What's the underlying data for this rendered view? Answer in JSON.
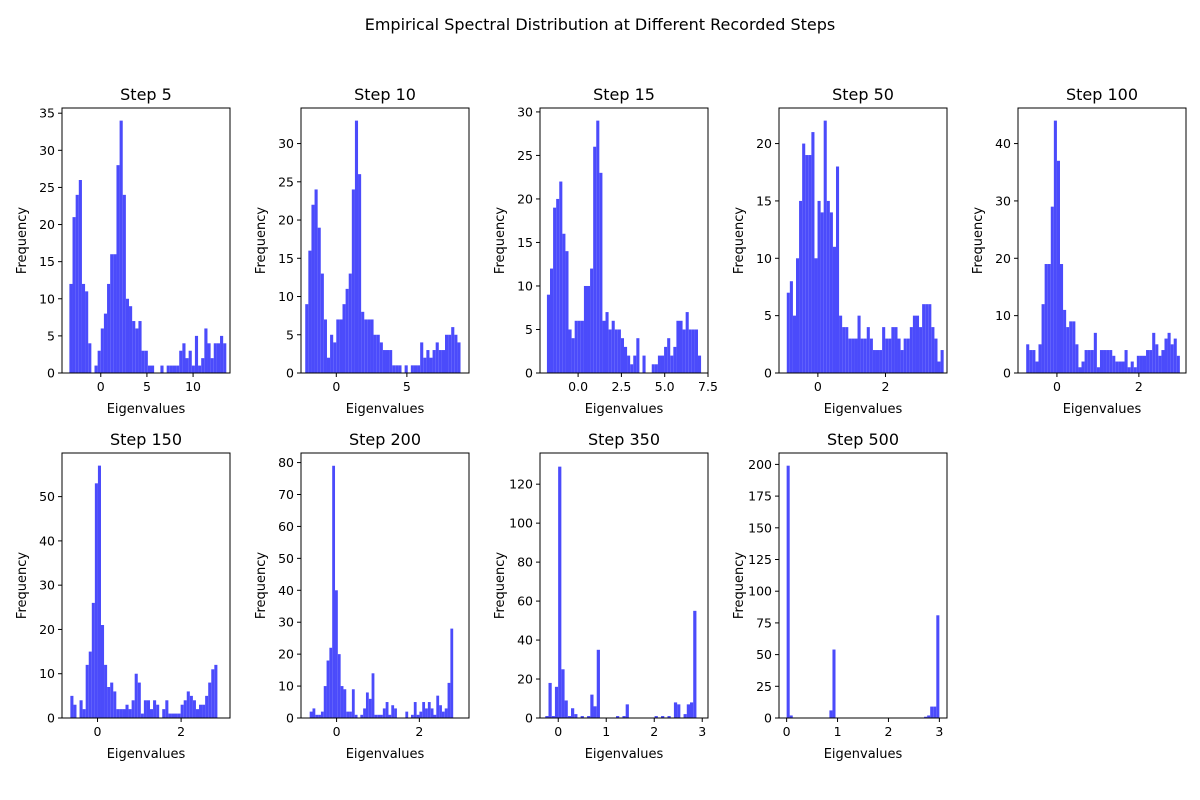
{
  "figure": {
    "title": "Empirical Spectral Distribution at Different Recorded Steps"
  },
  "chart_data": [
    {
      "type": "bar",
      "title": "Step 5",
      "xlabel": "Eigenvalues",
      "ylabel": "Frequency",
      "xlim": [
        -4.2,
        14.0
      ],
      "ylim": [
        0,
        35.7
      ],
      "xticks": [
        0,
        5,
        10
      ],
      "xtick_labels": [
        "0",
        "5",
        "10"
      ],
      "yticks": [
        0,
        5,
        10,
        15,
        20,
        25,
        30,
        35
      ],
      "ytick_labels": [
        "0",
        "5",
        "10",
        "15",
        "20",
        "25",
        "30",
        "35"
      ],
      "bin_start": -3.4,
      "bin_width": 0.34,
      "values": [
        12,
        21,
        24,
        26,
        12,
        11,
        4,
        0,
        1,
        3,
        6,
        8,
        12,
        16,
        16,
        28,
        34,
        24,
        10,
        9,
        7,
        6,
        7,
        3,
        3,
        1,
        1,
        0,
        0,
        1,
        0,
        1,
        1,
        1,
        1,
        3,
        4,
        2,
        3,
        1,
        5,
        1,
        2,
        6,
        4,
        2,
        4,
        4,
        5,
        4
      ]
    },
    {
      "type": "bar",
      "title": "Step 10",
      "xlabel": "Eigenvalues",
      "ylabel": "Frequency",
      "xlim": [
        -2.5,
        9.4
      ],
      "ylim": [
        0,
        34.65
      ],
      "xticks": [
        0,
        5
      ],
      "xtick_labels": [
        "0",
        "5"
      ],
      "yticks": [
        0,
        5,
        10,
        15,
        20,
        25,
        30
      ],
      "ytick_labels": [
        "0",
        "5",
        "10",
        "15",
        "20",
        "25",
        "30"
      ],
      "bin_start": -2.2,
      "bin_width": 0.22,
      "values": [
        9,
        16,
        22,
        24,
        19,
        13,
        7,
        2,
        5,
        4,
        7,
        7,
        9,
        11,
        13,
        24,
        33,
        26,
        8,
        7,
        7,
        7,
        5,
        5,
        4,
        3,
        3,
        3,
        1,
        1,
        1,
        0,
        1,
        0,
        1,
        1,
        1,
        4,
        2,
        3,
        2,
        3,
        4,
        3,
        3,
        5,
        5,
        6,
        5,
        4
      ]
    },
    {
      "type": "bar",
      "title": "Step 15",
      "xlabel": "Eigenvalues",
      "ylabel": "Frequency",
      "xlim": [
        -2.2,
        7.5
      ],
      "ylim": [
        0,
        30.45
      ],
      "xticks": [
        0,
        2.5,
        5,
        7.5
      ],
      "xtick_labels": [
        "0.0",
        "2.5",
        "5.0",
        "7.5"
      ],
      "yticks": [
        0,
        5,
        10,
        15,
        20,
        25,
        30
      ],
      "ytick_labels": [
        "0",
        "5",
        "10",
        "15",
        "20",
        "25",
        "30"
      ],
      "bin_start": -1.8,
      "bin_width": 0.178,
      "values": [
        9,
        12,
        19,
        20,
        22,
        16,
        14,
        5,
        4,
        6,
        6,
        6,
        10,
        10,
        12,
        26,
        29,
        23,
        6,
        7,
        5,
        6,
        5,
        5,
        4,
        3,
        2,
        1,
        2,
        4,
        0,
        2,
        0,
        0,
        1,
        1,
        2,
        2,
        3,
        4,
        2,
        3,
        6,
        6,
        5,
        7,
        5,
        5,
        5,
        2
      ]
    },
    {
      "type": "bar",
      "title": "Step 50",
      "xlabel": "Eigenvalues",
      "ylabel": "Frequency",
      "xlim": [
        -1.15,
        3.82
      ],
      "ylim": [
        0,
        23.1
      ],
      "xticks": [
        0,
        2
      ],
      "xtick_labels": [
        "0",
        "2"
      ],
      "yticks": [
        0,
        5,
        10,
        15,
        20
      ],
      "ytick_labels": [
        "0",
        "5",
        "10",
        "15",
        "20"
      ],
      "bin_start": -0.92,
      "bin_width": 0.091,
      "values": [
        7,
        8,
        5,
        10,
        15,
        20,
        19,
        19,
        21,
        10,
        15,
        14,
        22,
        15,
        14,
        11,
        18,
        5,
        4,
        4,
        3,
        3,
        3,
        5,
        3,
        3,
        4,
        3,
        2,
        2,
        2,
        4,
        3,
        3,
        4,
        4,
        3,
        2,
        3,
        3,
        4,
        5,
        5,
        4,
        6,
        6,
        6,
        4,
        3,
        1,
        2
      ]
    },
    {
      "type": "bar",
      "title": "Step 100",
      "xlabel": "Eigenvalues",
      "ylabel": "Frequency",
      "xlim": [
        -0.95,
        3.15
      ],
      "ylim": [
        0,
        46.2
      ],
      "xticks": [
        0,
        2
      ],
      "xtick_labels": [
        "0",
        "2"
      ],
      "yticks": [
        0,
        10,
        20,
        30,
        40
      ],
      "ytick_labels": [
        "0",
        "10",
        "20",
        "30",
        "40"
      ],
      "bin_start": -0.75,
      "bin_width": 0.075,
      "values": [
        5,
        4,
        4,
        2,
        5,
        12,
        19,
        19,
        29,
        44,
        37,
        19,
        11,
        8,
        9,
        9,
        5,
        1,
        2,
        4,
        4,
        4,
        7,
        1,
        4,
        4,
        4,
        4,
        3,
        2,
        2,
        2,
        4,
        1,
        2,
        1,
        3,
        3,
        3,
        4,
        4,
        7,
        5,
        3,
        4,
        6,
        7,
        5,
        6,
        3
      ]
    },
    {
      "type": "bar",
      "title": "Step 150",
      "xlabel": "Eigenvalues",
      "ylabel": "Frequency",
      "xlim": [
        -0.85,
        3.17
      ],
      "ylim": [
        0,
        59.85
      ],
      "xticks": [
        0,
        2
      ],
      "xtick_labels": [
        "0",
        "2"
      ],
      "yticks": [
        0,
        10,
        20,
        30,
        40,
        50
      ],
      "ytick_labels": [
        "0",
        "10",
        "20",
        "30",
        "40",
        "50"
      ],
      "bin_start": -0.65,
      "bin_width": 0.0733,
      "values": [
        5,
        3,
        0,
        4,
        2,
        12,
        15,
        26,
        53,
        57,
        21,
        12,
        7,
        8,
        6,
        2,
        2,
        2,
        3,
        2,
        4,
        10,
        8,
        1,
        4,
        4,
        2,
        4,
        3,
        0,
        2,
        4,
        1,
        1,
        1,
        1,
        3,
        4,
        6,
        5,
        4,
        2,
        3,
        3,
        5,
        8,
        11,
        12
      ]
    },
    {
      "type": "bar",
      "title": "Step 200",
      "xlabel": "Eigenvalues",
      "ylabel": "Frequency",
      "xlim": [
        -0.86,
        3.2
      ],
      "ylim": [
        0,
        83.0
      ],
      "xticks": [
        0,
        2
      ],
      "xtick_labels": [
        "0",
        "2"
      ],
      "yticks": [
        0,
        10,
        20,
        30,
        40,
        50,
        60,
        70,
        80
      ],
      "ytick_labels": [
        "0",
        "10",
        "20",
        "30",
        "40",
        "50",
        "60",
        "70",
        "80"
      ],
      "bin_start": -0.65,
      "bin_width": 0.068,
      "values": [
        2,
        3,
        1,
        1,
        2,
        10,
        18,
        22,
        79,
        40,
        20,
        10,
        9,
        2,
        2,
        9,
        1,
        0,
        1,
        3,
        8,
        6,
        14,
        1,
        1,
        1,
        3,
        5,
        1,
        4,
        3,
        0,
        0,
        0,
        2,
        0,
        1,
        5,
        1,
        2,
        5,
        3,
        5,
        3,
        1,
        7,
        4,
        2,
        3,
        11,
        28
      ]
    },
    {
      "type": "bar",
      "title": "Step 350",
      "xlabel": "Eigenvalues",
      "ylabel": "Frequency",
      "xlim": [
        -0.38,
        3.12
      ],
      "ylim": [
        0,
        136.0
      ],
      "xticks": [
        0,
        1,
        2,
        3
      ],
      "xtick_labels": [
        "0",
        "1",
        "2",
        "3"
      ],
      "yticks": [
        0,
        20,
        40,
        60,
        80,
        100,
        120
      ],
      "ytick_labels": [
        "0",
        "20",
        "40",
        "60",
        "80",
        "100",
        "120"
      ],
      "bin_start": -0.27,
      "bin_width": 0.067,
      "values": [
        1,
        18,
        1,
        16,
        129,
        25,
        9,
        1,
        5,
        2,
        0,
        1,
        0,
        1,
        12,
        6,
        35,
        0,
        0,
        0,
        0,
        0,
        1,
        0,
        1,
        7,
        0,
        0,
        0,
        0,
        0,
        0,
        0,
        0,
        1,
        0,
        1,
        0,
        1,
        0,
        8,
        7,
        0,
        2,
        7,
        8,
        55
      ]
    },
    {
      "type": "bar",
      "title": "Step 500",
      "xlabel": "Eigenvalues",
      "ylabel": "Frequency",
      "xlim": [
        -0.15,
        3.15
      ],
      "ylim": [
        0,
        209.0
      ],
      "xticks": [
        0,
        1,
        2,
        3
      ],
      "xtick_labels": [
        "0",
        "1",
        "2",
        "3"
      ],
      "yticks": [
        0,
        25,
        50,
        75,
        100,
        125,
        150,
        175,
        200
      ],
      "ytick_labels": [
        "0",
        "25",
        "50",
        "75",
        "100",
        "125",
        "150",
        "175",
        "200"
      ],
      "bin_start": 0.0,
      "bin_width": 0.06,
      "values": [
        199,
        2,
        0,
        0,
        0,
        0,
        0,
        0,
        0,
        0,
        0,
        0,
        0,
        0,
        6,
        54,
        0,
        0,
        0,
        0,
        0,
        0,
        0,
        0,
        0,
        0,
        0,
        0,
        0,
        0,
        0,
        0,
        0,
        0,
        0,
        0,
        0,
        0,
        0,
        0,
        0,
        0,
        0,
        0,
        0,
        1,
        2,
        9,
        9,
        81
      ]
    }
  ]
}
